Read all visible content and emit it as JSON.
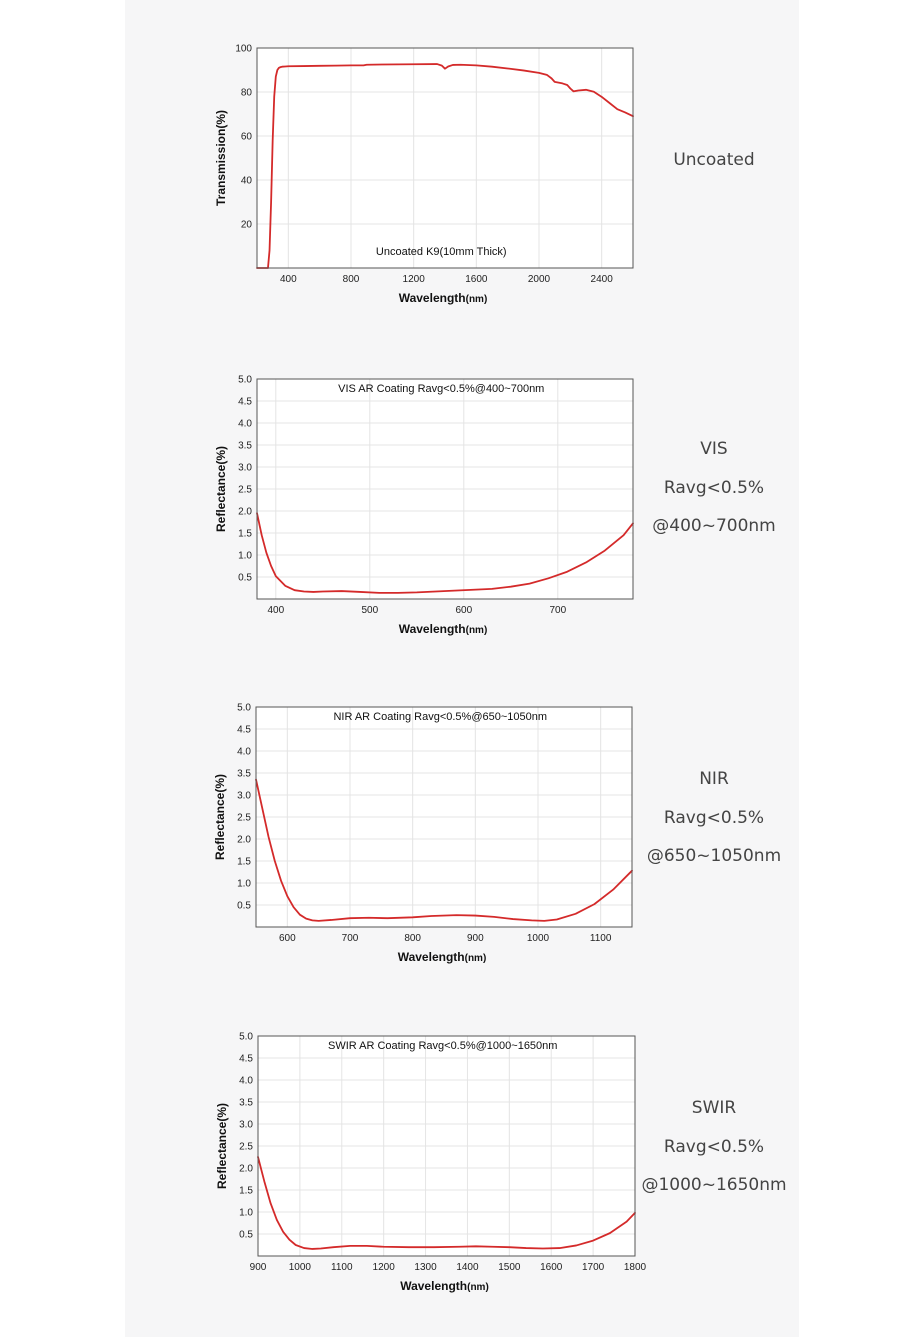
{
  "chart_data": [
    {
      "id": "uncoated",
      "type": "line",
      "annotation": "Uncoated K9(10mm Thick)",
      "xlabel_main": "Wavelength",
      "xlabel_unit": "(nm)",
      "ylabel": "Transmission(%)",
      "xlim": [
        200,
        2600
      ],
      "ylim": [
        0,
        100
      ],
      "xticks": [
        400,
        800,
        1200,
        1600,
        2000,
        2400
      ],
      "yticks": [
        20,
        40,
        60,
        80,
        100
      ],
      "grid": true,
      "line_color": "#d42a2a",
      "series": [
        {
          "x": [
            200,
            270,
            280,
            290,
            300,
            310,
            320,
            330,
            340,
            350,
            360,
            380,
            400,
            500,
            600,
            700,
            800,
            880,
            900,
            1000,
            1200,
            1350,
            1380,
            1400,
            1420,
            1450,
            1500,
            1600,
            1700,
            1800,
            1900,
            2000,
            2050,
            2080,
            2100,
            2150,
            2180,
            2200,
            2220,
            2250,
            2300,
            2350,
            2400,
            2450,
            2500,
            2550,
            2600
          ],
          "y": [
            0,
            0,
            8,
            30,
            58,
            78,
            87,
            90,
            91,
            91.3,
            91.5,
            91.6,
            91.7,
            91.8,
            91.9,
            92.0,
            92.1,
            92.1,
            92.4,
            92.5,
            92.6,
            92.7,
            92.0,
            90.6,
            91.6,
            92.3,
            92.4,
            92.1,
            91.5,
            90.7,
            89.8,
            88.7,
            87.8,
            86.2,
            84.6,
            83.9,
            83.2,
            81.6,
            80.3,
            80.7,
            81.0,
            80.1,
            77.8,
            75.0,
            72.2,
            70.7,
            69.0
          ]
        }
      ]
    },
    {
      "id": "vis",
      "type": "line",
      "annotation": "VIS AR Coating Ravg<0.5%@400~700nm",
      "xlabel_main": "Wavelength",
      "xlabel_unit": "(nm)",
      "ylabel": "Reflectance(%)",
      "xlim": [
        380,
        780
      ],
      "ylim": [
        0,
        5.0
      ],
      "xticks": [
        400,
        500,
        600,
        700
      ],
      "yticks": [
        "0.5",
        "1.0",
        "1.5",
        "2.0",
        "2.5",
        "3.0",
        "3.5",
        "4.0",
        "4.5",
        "5.0"
      ],
      "grid": true,
      "line_color": "#d42a2a",
      "series": [
        {
          "x": [
            380,
            385,
            390,
            395,
            400,
            410,
            420,
            430,
            440,
            450,
            470,
            490,
            510,
            530,
            550,
            570,
            590,
            610,
            630,
            650,
            670,
            690,
            710,
            730,
            750,
            770,
            780
          ],
          "y": [
            1.95,
            1.45,
            1.05,
            0.75,
            0.52,
            0.3,
            0.2,
            0.17,
            0.16,
            0.17,
            0.18,
            0.16,
            0.14,
            0.14,
            0.15,
            0.17,
            0.19,
            0.21,
            0.23,
            0.28,
            0.35,
            0.47,
            0.62,
            0.83,
            1.1,
            1.45,
            1.72
          ]
        }
      ]
    },
    {
      "id": "nir",
      "type": "line",
      "annotation": "NIR AR Coating Ravg<0.5%@650~1050nm",
      "xlabel_main": "Wavelength",
      "xlabel_unit": "(nm)",
      "ylabel": "Reflectance(%)",
      "xlim": [
        550,
        1150
      ],
      "ylim": [
        0,
        5.0
      ],
      "xticks": [
        600,
        700,
        800,
        900,
        1000,
        1100
      ],
      "yticks": [
        "0.5",
        "1.0",
        "1.5",
        "2.0",
        "2.5",
        "3.0",
        "3.5",
        "4.0",
        "4.5",
        "5.0"
      ],
      "grid": true,
      "line_color": "#d42a2a",
      "series": [
        {
          "x": [
            550,
            560,
            570,
            580,
            590,
            600,
            610,
            620,
            630,
            640,
            650,
            670,
            700,
            730,
            760,
            800,
            830,
            870,
            900,
            930,
            960,
            990,
            1010,
            1030,
            1060,
            1090,
            1120,
            1150
          ],
          "y": [
            3.35,
            2.7,
            2.05,
            1.5,
            1.05,
            0.7,
            0.45,
            0.28,
            0.19,
            0.15,
            0.14,
            0.16,
            0.2,
            0.21,
            0.2,
            0.22,
            0.25,
            0.27,
            0.26,
            0.23,
            0.18,
            0.15,
            0.14,
            0.17,
            0.3,
            0.52,
            0.85,
            1.28
          ]
        }
      ]
    },
    {
      "id": "swir",
      "type": "line",
      "annotation": "SWIR AR Coating Ravg<0.5%@1000~1650nm",
      "xlabel_main": "Wavelength",
      "xlabel_unit": "(nm)",
      "ylabel": "Reflectance(%)",
      "xlim": [
        900,
        1800
      ],
      "ylim": [
        0,
        5.0
      ],
      "xticks": [
        900,
        1000,
        1100,
        1200,
        1300,
        1400,
        1500,
        1600,
        1700,
        1800
      ],
      "yticks": [
        "0.5",
        "1.0",
        "1.5",
        "2.0",
        "2.5",
        "3.0",
        "3.5",
        "4.0",
        "4.5",
        "5.0"
      ],
      "grid": true,
      "line_color": "#d42a2a",
      "series": [
        {
          "x": [
            900,
            915,
            930,
            945,
            960,
            975,
            990,
            1010,
            1030,
            1050,
            1080,
            1120,
            1160,
            1200,
            1260,
            1320,
            1380,
            1420,
            1460,
            1500,
            1540,
            1580,
            1620,
            1660,
            1700,
            1740,
            1780,
            1800
          ],
          "y": [
            2.25,
            1.7,
            1.2,
            0.82,
            0.55,
            0.37,
            0.25,
            0.18,
            0.16,
            0.17,
            0.2,
            0.23,
            0.23,
            0.21,
            0.2,
            0.2,
            0.21,
            0.22,
            0.21,
            0.2,
            0.18,
            0.17,
            0.18,
            0.24,
            0.35,
            0.52,
            0.78,
            0.98
          ]
        }
      ]
    }
  ],
  "side_labels": [
    {
      "lines": [
        "Uncoated"
      ]
    },
    {
      "lines": [
        "VIS",
        "Ravg<0.5%",
        "@400~700nm"
      ]
    },
    {
      "lines": [
        "NIR",
        "Ravg<0.5%",
        "@650~1050nm"
      ]
    },
    {
      "lines": [
        "SWIR",
        "Ravg<0.5%",
        "@1000~1650nm"
      ]
    }
  ]
}
